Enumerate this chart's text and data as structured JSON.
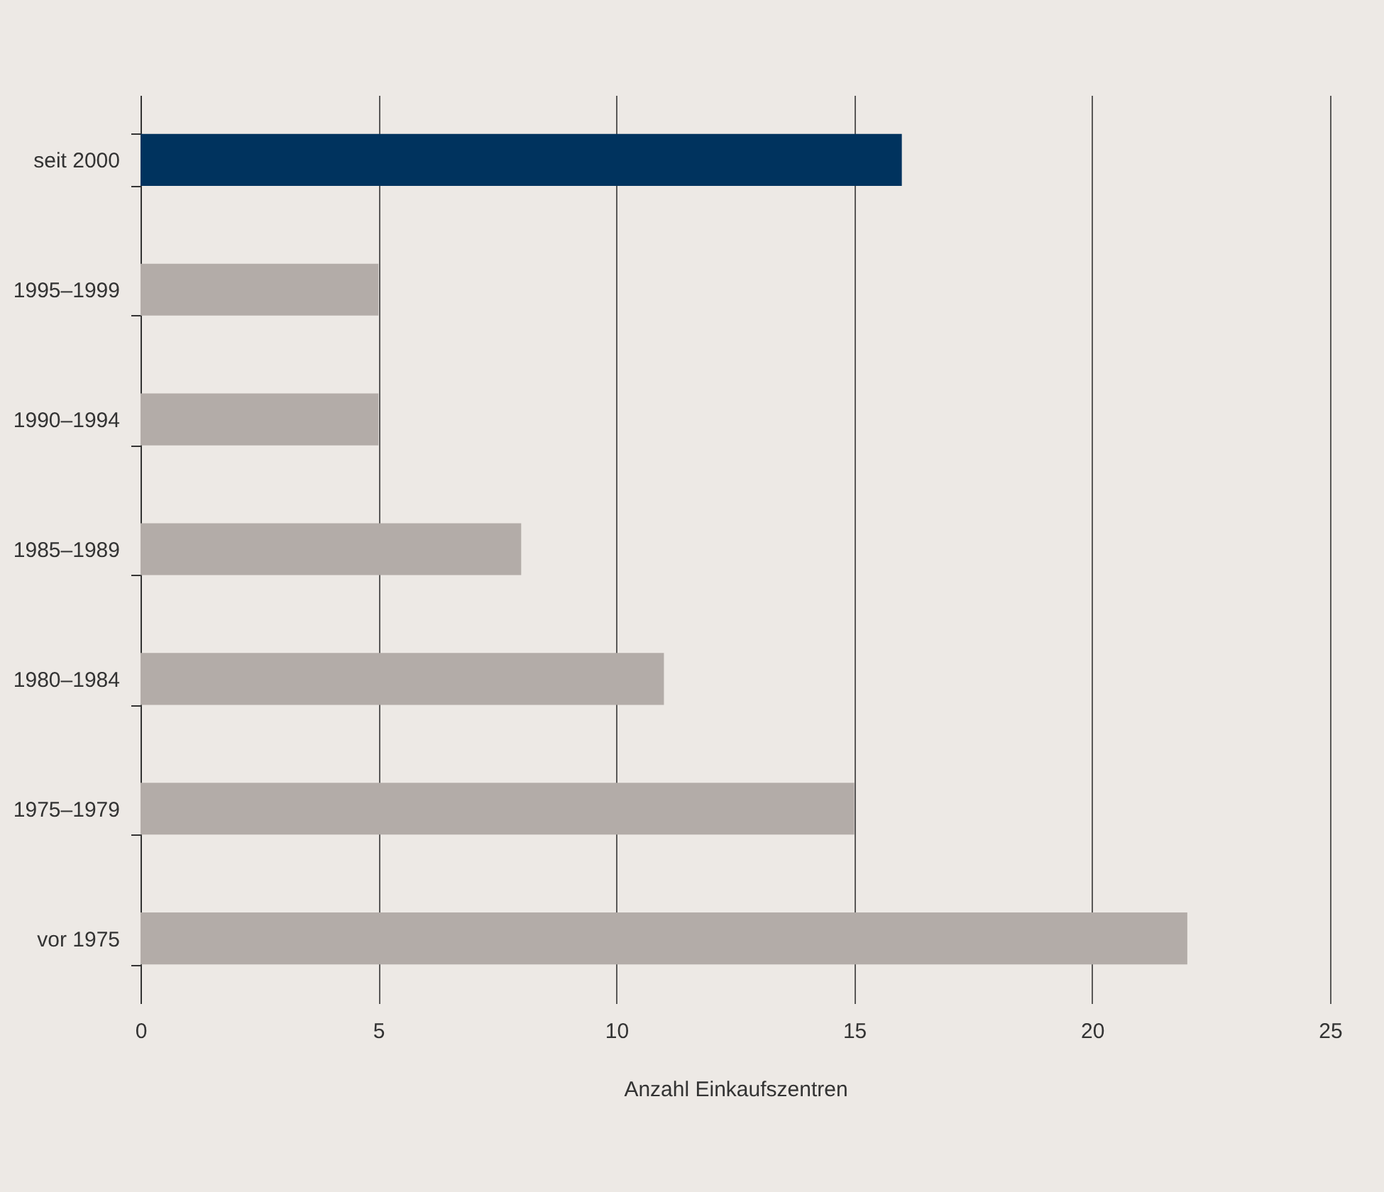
{
  "chart_data": {
    "type": "bar",
    "orientation": "horizontal",
    "xlabel": "Anzahl Einkaufszentren",
    "categories": [
      "seit 2000",
      "1995–1999",
      "1990–1994",
      "1985–1989",
      "1980–1984",
      "1975–1979",
      "vor 1975"
    ],
    "values": [
      16,
      5,
      5,
      8,
      11,
      15,
      22
    ],
    "colors": [
      "#00335e",
      "#b3aca8",
      "#b3aca8",
      "#b3aca8",
      "#b3aca8",
      "#b3aca8",
      "#b3aca8"
    ],
    "xlim": [
      0,
      25
    ],
    "xticks": [
      0,
      5,
      10,
      15,
      20,
      25
    ],
    "grid": "x"
  }
}
